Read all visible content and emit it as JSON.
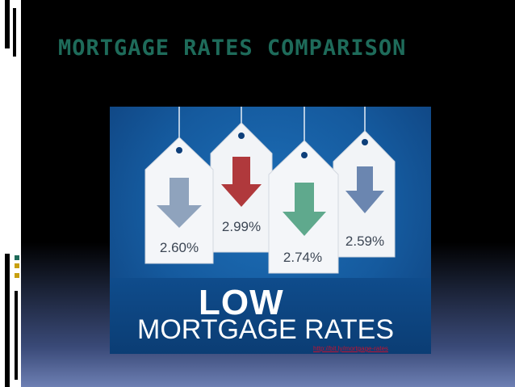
{
  "slide": {
    "title": "MORTGAGE RATES COMPARISON"
  },
  "picture": {
    "headline_low": "LOW",
    "headline_rest": "MORTGAGE RATES",
    "source_link": "http://bit.ly/mortgage-rates",
    "tags": [
      {
        "rate": "2.60%",
        "arrow_color": "#8fa3bd"
      },
      {
        "rate": "2.99%",
        "arrow_color": "#b0393c"
      },
      {
        "rate": "2.74%",
        "arrow_color": "#5fa98d"
      },
      {
        "rate": "2.59%",
        "arrow_color": "#6b86b0"
      }
    ]
  },
  "colors": {
    "title": "#1e6b5a",
    "picture_background": "#155a9e"
  }
}
